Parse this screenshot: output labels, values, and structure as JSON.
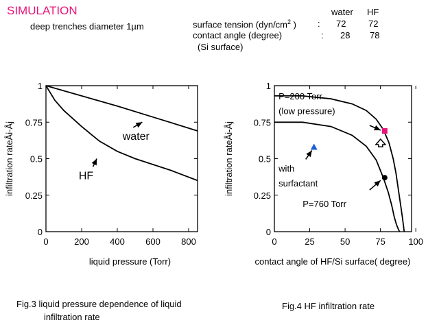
{
  "header": {
    "title": "SIMULATION",
    "subtitle": "deep trenches diameter 1µm"
  },
  "properties": {
    "col_water": "water",
    "col_hf": "HF",
    "rows": [
      {
        "label": "surface tension (dyn/cm",
        "sup": "2",
        "label_tail": " )",
        "sep": ":",
        "water": "72",
        "hf": "72"
      },
      {
        "label": "contact angle (degree)",
        "sup": "",
        "label_tail": "",
        "sep": ":",
        "water": "28",
        "hf": "78"
      }
    ],
    "note": "(Si surface)"
  },
  "captions": {
    "fig3_line1": "Fig.3  liquid pressure dependence of  liquid",
    "fig3_line2": "infiltration rate",
    "fig4": "Fig.4  HF infiltration rate"
  },
  "chart_data": [
    {
      "type": "line",
      "xlabel": "liquid pressure  (Torr)",
      "ylabel": "infiltration rateÅi-Åj",
      "xlim": [
        0,
        850
      ],
      "ylim": [
        0,
        1
      ],
      "xticks": [
        "0",
        "200",
        "400",
        "600",
        "800"
      ],
      "yticks": [
        "0",
        "0.25",
        "0.5",
        "0.75",
        "1"
      ],
      "series": [
        {
          "name": "water",
          "x": [
            0,
            200,
            400,
            600,
            850
          ],
          "y": [
            1.0,
            0.93,
            0.86,
            0.785,
            0.69
          ]
        },
        {
          "name": "HF",
          "x": [
            0,
            50,
            100,
            200,
            300,
            400,
            500,
            600,
            700,
            850
          ],
          "y": [
            1.0,
            0.9,
            0.83,
            0.72,
            0.62,
            0.55,
            0.5,
            0.46,
            0.42,
            0.35
          ]
        }
      ],
      "labels": [
        {
          "text": "water",
          "x": 505,
          "y": 0.63,
          "arrow_to": [
            540,
            0.75
          ]
        },
        {
          "text": "HF",
          "x": 225,
          "y": 0.36,
          "arrow_to": [
            285,
            0.5
          ]
        }
      ]
    },
    {
      "type": "scatter",
      "xlabel": "contact angle of HF/Si surface( degree)",
      "ylabel": "infiltration rateÅi-Åj",
      "xlim": [
        0,
        97
      ],
      "ylim": [
        0,
        1
      ],
      "xticks": [
        "0",
        "25",
        "50",
        "75",
        "100"
      ],
      "yticks": [
        "0",
        "0.25",
        "0.5",
        "0.75",
        "1"
      ],
      "series": [
        {
          "name": "P=200 Torr (low pressure)",
          "x": [
            0,
            20,
            40,
            55,
            65,
            72,
            77,
            81,
            84,
            86,
            87.5,
            89,
            90.5,
            91.8
          ],
          "y": [
            0.93,
            0.93,
            0.91,
            0.875,
            0.83,
            0.77,
            0.7,
            0.61,
            0.5,
            0.4,
            0.3,
            0.2,
            0.1,
            0.0
          ]
        },
        {
          "name": "P=760 Torr",
          "x": [
            0,
            20,
            40,
            55,
            65,
            72,
            77,
            80.5,
            83,
            84.8,
            86.3,
            87.5,
            88.5
          ],
          "y": [
            0.75,
            0.75,
            0.72,
            0.66,
            0.585,
            0.49,
            0.37,
            0.27,
            0.18,
            0.1,
            0.05,
            0.02,
            0.0
          ]
        }
      ],
      "points": [
        {
          "name": "with surfactant",
          "x": 28,
          "y": 0.58,
          "color": "#1f5fd6",
          "shape": "triangle"
        },
        {
          "name": "low-pressure-point",
          "x": 78,
          "y": 0.69,
          "color": "#e8157a",
          "shape": "square"
        },
        {
          "name": "high-pressure-point",
          "x": 78,
          "y": 0.37,
          "color": "#000000",
          "shape": "circle"
        }
      ],
      "labels": [
        {
          "text": "P=200 Torr",
          "x": 3,
          "y": 0.905
        },
        {
          "text": "(low pressure)",
          "x": 3,
          "y": 0.805
        },
        {
          "text": "with",
          "x": 3,
          "y": 0.41
        },
        {
          "text": "surfactant",
          "x": 3,
          "y": 0.31
        },
        {
          "text": "P=760 Torr",
          "x": 20,
          "y": 0.17
        }
      ]
    }
  ]
}
